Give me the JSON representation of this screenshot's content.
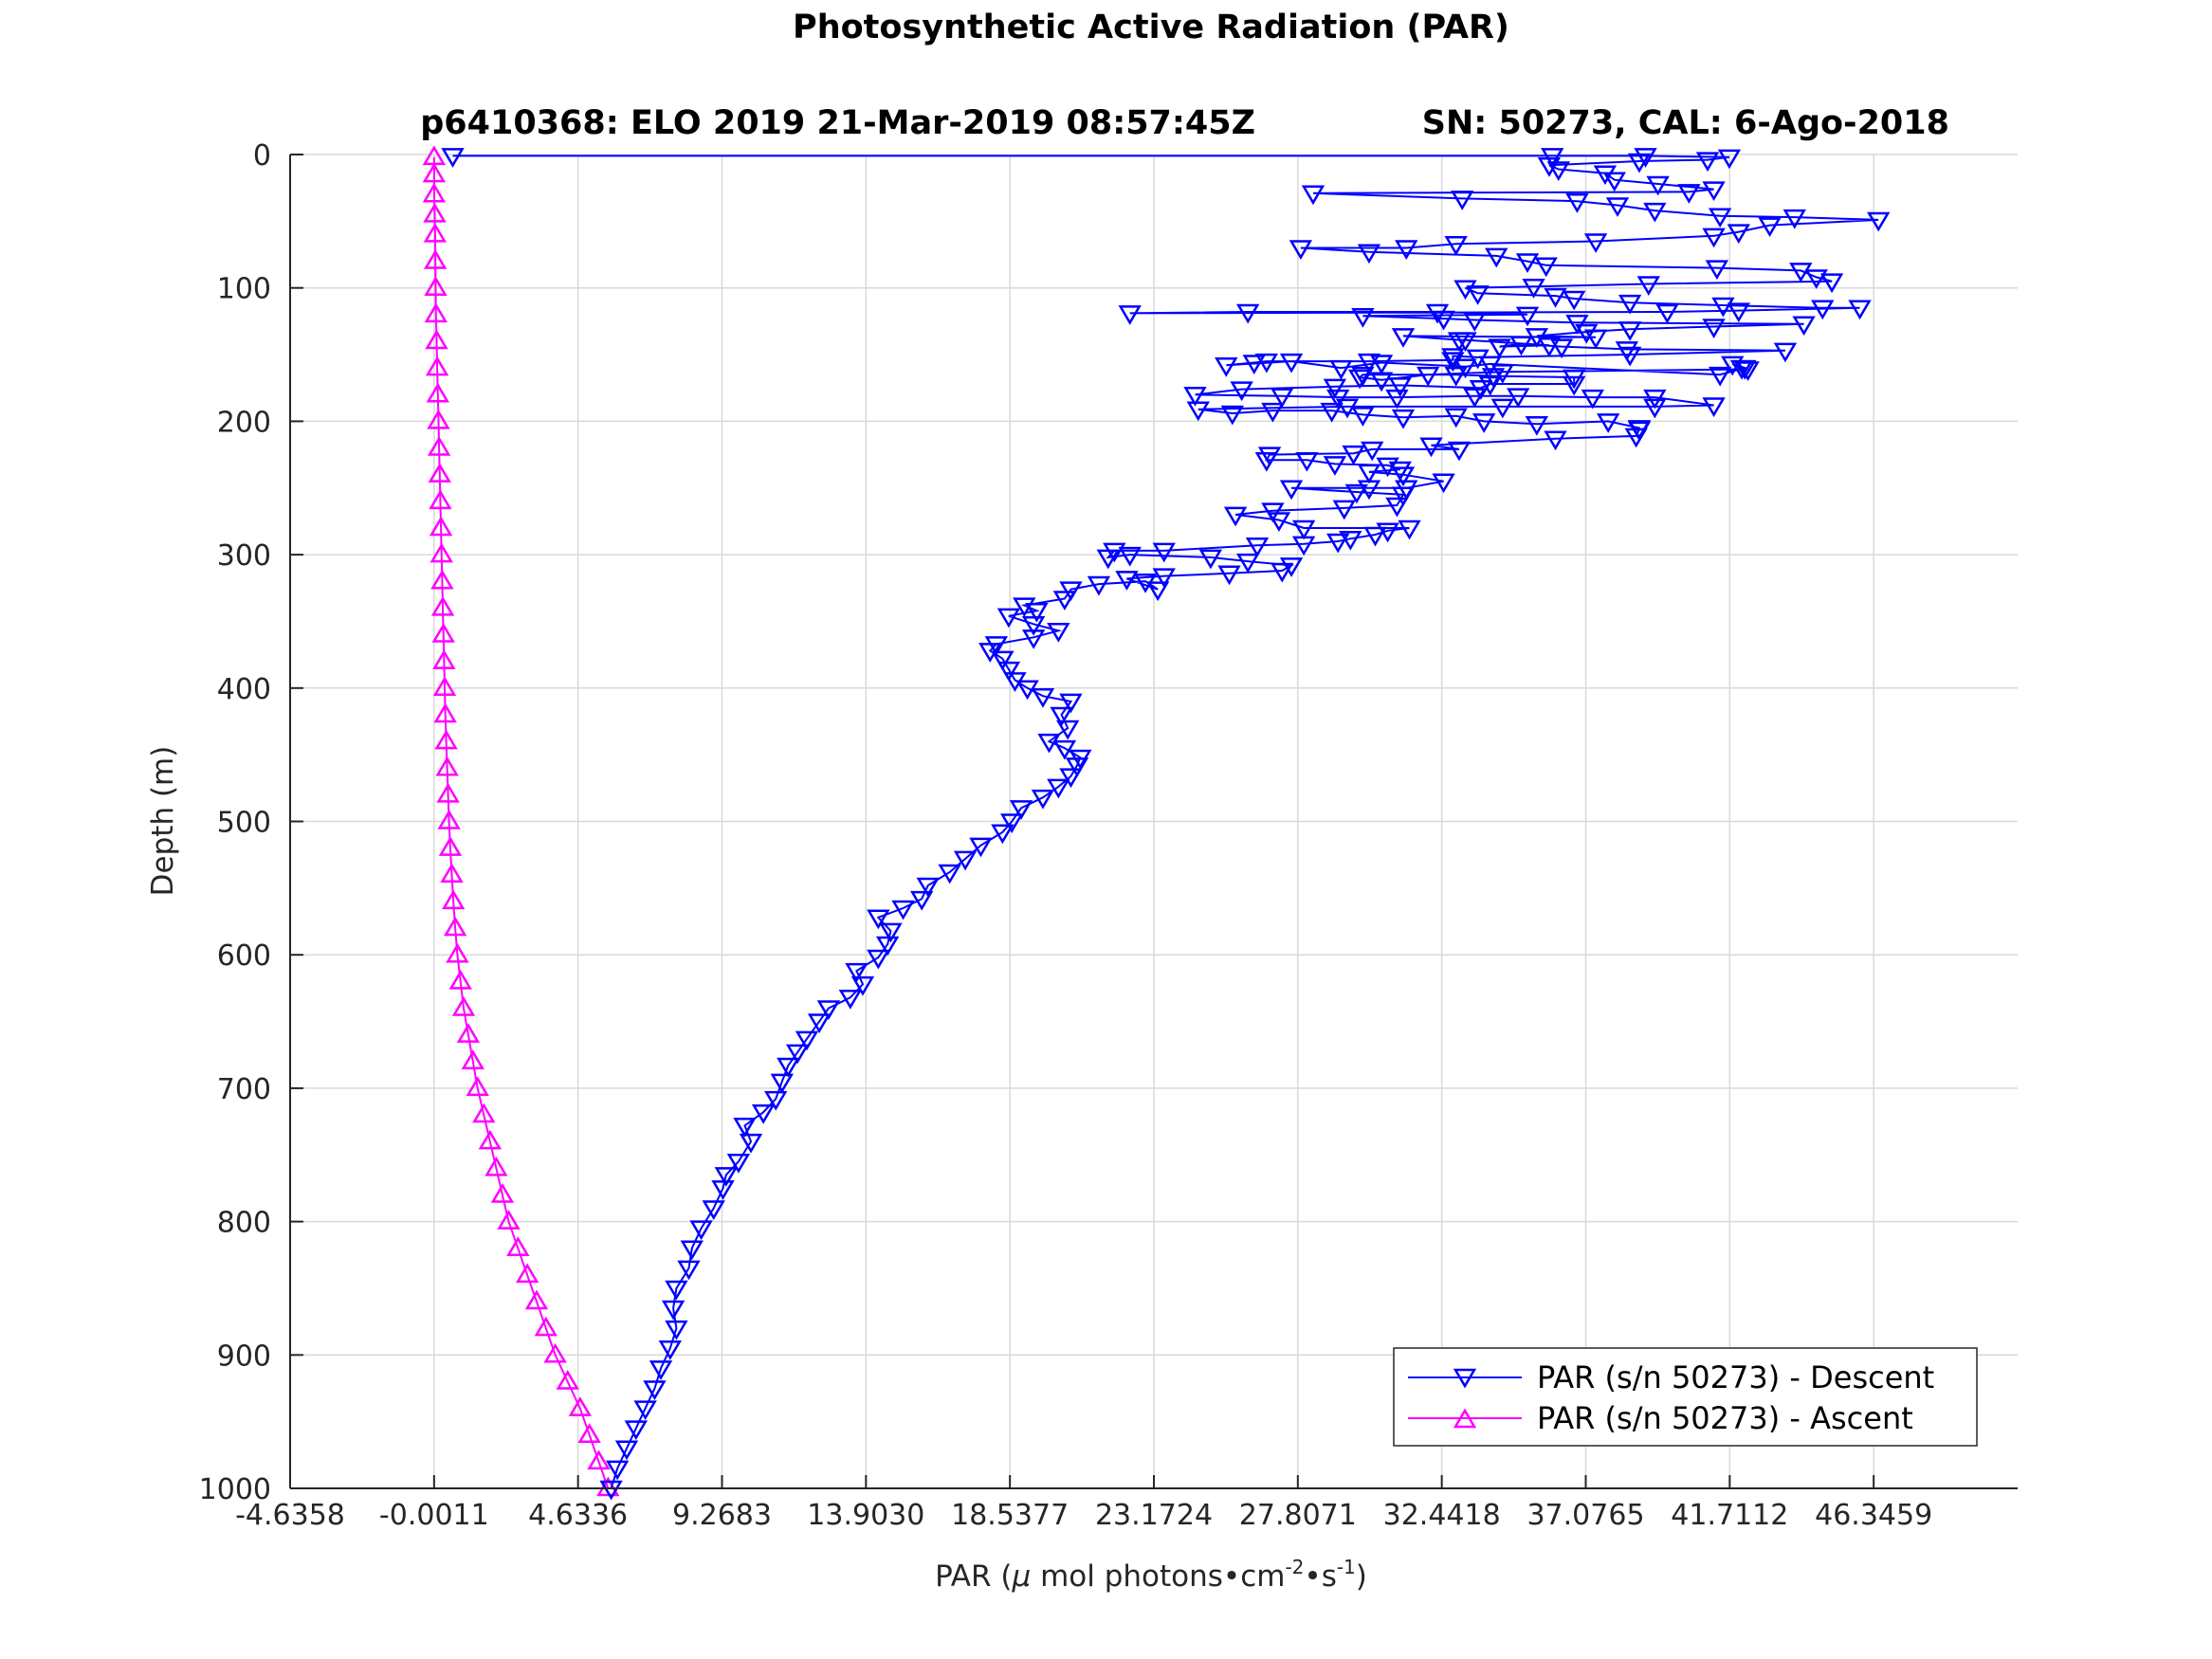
{
  "figure": {
    "title": "Photosynthetic Active Radiation (PAR)",
    "subtitle_left": "p6410368: ELO 2019 21-Mar-2019 08:57:45Z",
    "subtitle_right": "SN: 50273, CAL: 6-Ago-2018"
  },
  "chart_data": {
    "type": "line",
    "title": "Photosynthetic Active Radiation (PAR)",
    "xlabel": "PAR (μ mol photons•cm⁻²•s⁻¹)",
    "xlabel_parts": {
      "pre": "PAR (",
      "mu": "μ",
      "mid": " mol photons•cm",
      "sup1": "-2",
      "mid2": "•s",
      "sup2": "-1",
      "post": ")"
    },
    "ylabel": "Depth (m)",
    "xlim": [
      -4.6358,
      50.9806
    ],
    "ylim": [
      1000,
      0
    ],
    "y_reversed": true,
    "grid": true,
    "legend_position": "bottom-right",
    "xticks": [
      -4.6358,
      -0.0011,
      4.6336,
      9.2683,
      13.903,
      18.5377,
      23.1724,
      27.8071,
      32.4418,
      37.0765,
      41.7112,
      46.3459
    ],
    "xtick_labels": [
      "-4.6358",
      "-0.0011",
      "4.6336",
      "9.2683",
      "13.9030",
      "18.5377",
      "23.1724",
      "27.8071",
      "32.4418",
      "37.0765",
      "41.7112",
      "46.3459"
    ],
    "yticks": [
      0,
      100,
      200,
      300,
      400,
      500,
      600,
      700,
      800,
      900,
      1000
    ],
    "ytick_labels": [
      "0",
      "100",
      "200",
      "300",
      "400",
      "500",
      "600",
      "700",
      "800",
      "900",
      "1000"
    ],
    "series": [
      {
        "name": "PAR (s/n 50273) - Descent",
        "color": "#0000ff",
        "marker": "triangle-down",
        "points": [
          [
            5.7,
            1000
          ],
          [
            5.9,
            985
          ],
          [
            6.2,
            970
          ],
          [
            6.5,
            955
          ],
          [
            6.8,
            940
          ],
          [
            7.1,
            925
          ],
          [
            7.3,
            910
          ],
          [
            7.6,
            895
          ],
          [
            7.8,
            880
          ],
          [
            7.7,
            865
          ],
          [
            7.8,
            850
          ],
          [
            8.2,
            835
          ],
          [
            8.3,
            820
          ],
          [
            8.6,
            805
          ],
          [
            9.0,
            790
          ],
          [
            9.3,
            775
          ],
          [
            9.4,
            765
          ],
          [
            9.8,
            755
          ],
          [
            10.2,
            740
          ],
          [
            10.0,
            728
          ],
          [
            10.6,
            718
          ],
          [
            11.0,
            708
          ],
          [
            11.2,
            695
          ],
          [
            11.4,
            683
          ],
          [
            11.7,
            673
          ],
          [
            12.0,
            663
          ],
          [
            12.4,
            650
          ],
          [
            12.7,
            640
          ],
          [
            13.4,
            632
          ],
          [
            13.8,
            622
          ],
          [
            13.6,
            612
          ],
          [
            14.3,
            602
          ],
          [
            14.6,
            592
          ],
          [
            14.7,
            582
          ],
          [
            14.3,
            572
          ],
          [
            15.1,
            565
          ],
          [
            15.7,
            558
          ],
          [
            15.9,
            548
          ],
          [
            16.6,
            538
          ],
          [
            17.1,
            528
          ],
          [
            17.6,
            518
          ],
          [
            18.3,
            508
          ],
          [
            18.6,
            500
          ],
          [
            18.9,
            490
          ],
          [
            19.6,
            482
          ],
          [
            20.1,
            474
          ],
          [
            20.5,
            466
          ],
          [
            20.7,
            458
          ],
          [
            20.8,
            452
          ],
          [
            20.3,
            445
          ],
          [
            19.8,
            440
          ],
          [
            20.4,
            430
          ],
          [
            20.2,
            420
          ],
          [
            20.5,
            410
          ],
          [
            19.6,
            406
          ],
          [
            19.1,
            400
          ],
          [
            18.7,
            394
          ],
          [
            18.5,
            386
          ],
          [
            18.3,
            378
          ],
          [
            17.9,
            372
          ],
          [
            18.1,
            367
          ],
          [
            19.3,
            362
          ],
          [
            20.1,
            357
          ],
          [
            19.3,
            352
          ],
          [
            18.5,
            346
          ],
          [
            19.4,
            342
          ],
          [
            19.0,
            338
          ],
          [
            20.3,
            333
          ],
          [
            20.5,
            326
          ],
          [
            21.4,
            322
          ],
          [
            22.9,
            320
          ],
          [
            23.3,
            326
          ],
          [
            22.3,
            318
          ],
          [
            23.5,
            316
          ],
          [
            25.6,
            314
          ],
          [
            27.3,
            312
          ],
          [
            27.6,
            308
          ],
          [
            26.2,
            305
          ],
          [
            25.0,
            302
          ],
          [
            22.4,
            300
          ],
          [
            21.7,
            302
          ],
          [
            21.9,
            297
          ],
          [
            23.5,
            297
          ],
          [
            26.5,
            293
          ],
          [
            28.0,
            292
          ],
          [
            29.1,
            290
          ],
          [
            29.5,
            288
          ],
          [
            30.3,
            285
          ],
          [
            30.7,
            282
          ],
          [
            31.4,
            280
          ],
          [
            28.0,
            280
          ],
          [
            27.2,
            274
          ],
          [
            25.8,
            270
          ],
          [
            27.0,
            267
          ],
          [
            29.3,
            265
          ],
          [
            31.0,
            263
          ],
          [
            31.2,
            255
          ],
          [
            29.7,
            253
          ],
          [
            27.6,
            250
          ],
          [
            30.1,
            250
          ],
          [
            31.3,
            250
          ],
          [
            32.5,
            245
          ],
          [
            31.2,
            240
          ],
          [
            30.1,
            238
          ],
          [
            31.1,
            236
          ],
          [
            30.7,
            233
          ],
          [
            29.0,
            232
          ],
          [
            28.1,
            229
          ],
          [
            26.8,
            229
          ],
          [
            26.9,
            225
          ],
          [
            29.6,
            224
          ],
          [
            30.2,
            221
          ],
          [
            33.0,
            221
          ],
          [
            32.1,
            218
          ],
          [
            36.1,
            213
          ],
          [
            38.7,
            211
          ],
          [
            38.8,
            206
          ],
          [
            38.8,
            205
          ],
          [
            37.8,
            200
          ],
          [
            35.5,
            202
          ],
          [
            33.8,
            200
          ],
          [
            32.9,
            196
          ],
          [
            31.2,
            197
          ],
          [
            29.9,
            195
          ],
          [
            28.9,
            192
          ],
          [
            27.0,
            192
          ],
          [
            25.7,
            194
          ],
          [
            24.6,
            191
          ],
          [
            29.4,
            189
          ],
          [
            34.4,
            189
          ],
          [
            39.3,
            189
          ],
          [
            41.2,
            188
          ],
          [
            39.3,
            182
          ],
          [
            37.3,
            182
          ],
          [
            34.9,
            181
          ],
          [
            33.5,
            181
          ],
          [
            31.0,
            182
          ],
          [
            29.1,
            182
          ],
          [
            27.3,
            181
          ],
          [
            24.5,
            180
          ],
          [
            26.0,
            176
          ],
          [
            29.0,
            174
          ],
          [
            31.1,
            173
          ],
          [
            33.7,
            175
          ],
          [
            34.0,
            172
          ],
          [
            36.7,
            172
          ],
          [
            36.7,
            167
          ],
          [
            34.1,
            166
          ],
          [
            32.9,
            165
          ],
          [
            29.9,
            165
          ],
          [
            29.8,
            167
          ],
          [
            30.5,
            169
          ],
          [
            32.0,
            165
          ],
          [
            34.4,
            163
          ],
          [
            42.3,
            161
          ],
          [
            42.1,
            160
          ],
          [
            41.8,
            157
          ],
          [
            42.2,
            160
          ],
          [
            41.4,
            165
          ],
          [
            34.0,
            157
          ],
          [
            33.2,
            159
          ],
          [
            30.5,
            156
          ],
          [
            29.2,
            160
          ],
          [
            27.6,
            155
          ],
          [
            25.5,
            158
          ],
          [
            26.4,
            156
          ],
          [
            26.8,
            155
          ],
          [
            30.1,
            155
          ],
          [
            32.8,
            154
          ],
          [
            32.8,
            151
          ],
          [
            33.6,
            152
          ],
          [
            38.5,
            150
          ],
          [
            43.5,
            147
          ],
          [
            38.4,
            146
          ],
          [
            36.3,
            144
          ],
          [
            35.0,
            142
          ],
          [
            34.3,
            144
          ],
          [
            35.9,
            143
          ],
          [
            33.2,
            139
          ],
          [
            33.0,
            139
          ],
          [
            31.2,
            136
          ],
          [
            37.4,
            137
          ],
          [
            35.5,
            136
          ],
          [
            37.1,
            133
          ],
          [
            38.5,
            131
          ],
          [
            41.2,
            129
          ],
          [
            44.1,
            127
          ],
          [
            36.8,
            126
          ],
          [
            33.5,
            124
          ],
          [
            32.5,
            123
          ],
          [
            29.9,
            121
          ],
          [
            35.2,
            120
          ],
          [
            32.3,
            118
          ],
          [
            26.2,
            118
          ],
          [
            22.4,
            119
          ],
          [
            39.7,
            118
          ],
          [
            42.0,
            117
          ],
          [
            45.9,
            115
          ],
          [
            44.7,
            115
          ],
          [
            41.5,
            113
          ],
          [
            38.5,
            111
          ],
          [
            36.7,
            108
          ],
          [
            36.1,
            106
          ],
          [
            33.6,
            104
          ],
          [
            33.2,
            100
          ],
          [
            35.4,
            99
          ],
          [
            39.1,
            97
          ],
          [
            45.0,
            95
          ],
          [
            44.5,
            92
          ],
          [
            44.0,
            87
          ],
          [
            41.3,
            85
          ],
          [
            35.8,
            83
          ],
          [
            35.2,
            80
          ],
          [
            34.2,
            76
          ],
          [
            30.1,
            73
          ],
          [
            27.9,
            70
          ],
          [
            31.3,
            70
          ],
          [
            32.9,
            67
          ],
          [
            37.4,
            65
          ],
          [
            41.2,
            61
          ],
          [
            42.0,
            58
          ],
          [
            43.0,
            53
          ],
          [
            46.5,
            49
          ],
          [
            43.8,
            47
          ],
          [
            41.4,
            46
          ],
          [
            39.3,
            42
          ],
          [
            38.1,
            38
          ],
          [
            36.8,
            35
          ],
          [
            33.1,
            33
          ],
          [
            28.3,
            29
          ],
          [
            40.4,
            28
          ],
          [
            41.2,
            26
          ],
          [
            39.4,
            22
          ],
          [
            38.0,
            19
          ],
          [
            37.7,
            14
          ],
          [
            36.2,
            11
          ],
          [
            35.9,
            8
          ],
          [
            38.8,
            5
          ],
          [
            41.0,
            4
          ],
          [
            41.7,
            2
          ],
          [
            39.0,
            1
          ],
          [
            36.0,
            1
          ],
          [
            0.6,
            1
          ]
        ]
      },
      {
        "name": "PAR (s/n 50273) - Ascent",
        "color": "#ff00ff",
        "marker": "triangle-up",
        "points": [
          [
            5.6,
            1000
          ],
          [
            5.3,
            980
          ],
          [
            5.0,
            960
          ],
          [
            4.7,
            940
          ],
          [
            4.3,
            920
          ],
          [
            3.9,
            900
          ],
          [
            3.6,
            880
          ],
          [
            3.3,
            860
          ],
          [
            3.0,
            840
          ],
          [
            2.7,
            820
          ],
          [
            2.4,
            800
          ],
          [
            2.2,
            780
          ],
          [
            2.0,
            760
          ],
          [
            1.8,
            740
          ],
          [
            1.6,
            720
          ],
          [
            1.4,
            700
          ],
          [
            1.25,
            680
          ],
          [
            1.1,
            660
          ],
          [
            0.95,
            640
          ],
          [
            0.85,
            620
          ],
          [
            0.75,
            600
          ],
          [
            0.68,
            580
          ],
          [
            0.62,
            560
          ],
          [
            0.57,
            540
          ],
          [
            0.52,
            520
          ],
          [
            0.48,
            500
          ],
          [
            0.45,
            480
          ],
          [
            0.42,
            460
          ],
          [
            0.39,
            440
          ],
          [
            0.36,
            420
          ],
          [
            0.34,
            400
          ],
          [
            0.32,
            380
          ],
          [
            0.3,
            360
          ],
          [
            0.28,
            340
          ],
          [
            0.26,
            320
          ],
          [
            0.24,
            300
          ],
          [
            0.22,
            280
          ],
          [
            0.2,
            260
          ],
          [
            0.18,
            240
          ],
          [
            0.16,
            220
          ],
          [
            0.14,
            200
          ],
          [
            0.12,
            180
          ],
          [
            0.1,
            160
          ],
          [
            0.08,
            140
          ],
          [
            0.06,
            120
          ],
          [
            0.05,
            100
          ],
          [
            0.04,
            80
          ],
          [
            0.03,
            60
          ],
          [
            0.02,
            45
          ],
          [
            0.0,
            30
          ],
          [
            0.0,
            15
          ],
          [
            0.0,
            2
          ]
        ]
      }
    ]
  }
}
